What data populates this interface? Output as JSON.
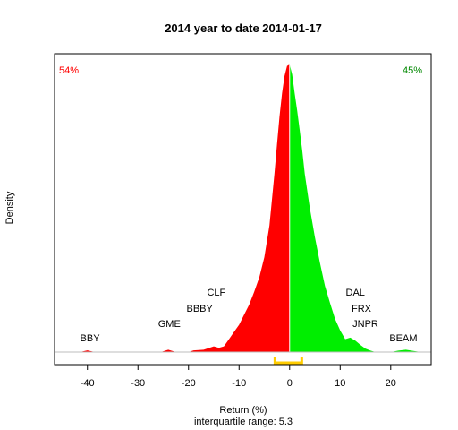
{
  "chart_data": {
    "type": "area",
    "title": "2014  year to date 2014-01-17",
    "xlabel": "Return (%)",
    "ylabel": "Density",
    "subtitle": "interquartile range: 5.3",
    "xlim": [
      -46.5,
      28
    ],
    "ylim": [
      0,
      1
    ],
    "x_ticks": [
      -40,
      -30,
      -20,
      -10,
      0,
      10,
      20
    ],
    "x_tick_labels": [
      "-40",
      "-30",
      "-20",
      "-10",
      "0",
      "10",
      "20"
    ],
    "pct_negative": "54%",
    "pct_positive": "45%",
    "colors": {
      "negative": "#ff0000",
      "positive": "#00ee00",
      "iqr": "#ffcc00",
      "baseline": "#bebebe"
    },
    "iqr": [
      -2.9,
      2.4
    ],
    "density": {
      "x": [
        -41.5,
        -40,
        -38.5,
        -35,
        -30,
        -25.5,
        -24,
        -22.5,
        -20,
        -19,
        -17,
        -15,
        -14,
        -13,
        -12,
        -11,
        -10,
        -9,
        -8,
        -7,
        -6,
        -5,
        -4,
        -3,
        -2.5,
        -2,
        -1.5,
        -1,
        -0.5,
        0,
        0.5,
        1,
        1.5,
        2,
        2.5,
        3,
        4,
        5,
        6,
        7,
        8,
        9,
        10,
        11,
        12,
        13,
        14,
        15,
        16,
        17,
        18,
        20,
        21.5,
        23,
        24.5,
        26
      ],
      "y": [
        0,
        0.006,
        0,
        0,
        0,
        0,
        0.008,
        0,
        0,
        0.006,
        0.008,
        0.02,
        0.015,
        0.02,
        0.045,
        0.07,
        0.095,
        0.13,
        0.165,
        0.21,
        0.26,
        0.33,
        0.44,
        0.62,
        0.72,
        0.82,
        0.9,
        0.96,
        0.995,
        1.0,
        0.965,
        0.9,
        0.84,
        0.77,
        0.7,
        0.62,
        0.5,
        0.4,
        0.31,
        0.23,
        0.17,
        0.115,
        0.075,
        0.045,
        0.05,
        0.04,
        0.025,
        0.012,
        0.005,
        0,
        0,
        0,
        0.005,
        0.008,
        0.004,
        0
      ]
    },
    "annotations": [
      {
        "label": "BBY",
        "x": -39.5,
        "level": 0
      },
      {
        "label": "GME",
        "x": -23.8,
        "level": 1
      },
      {
        "label": "BBBY",
        "x": -17.8,
        "level": 2
      },
      {
        "label": "CLF",
        "x": -14.5,
        "level": 3
      },
      {
        "label": "DAL",
        "x": 13,
        "level": 3
      },
      {
        "label": "FRX",
        "x": 14.2,
        "level": 2
      },
      {
        "label": "JNPR",
        "x": 15,
        "level": 1
      },
      {
        "label": "BEAM",
        "x": 22.5,
        "level": 0
      }
    ]
  }
}
